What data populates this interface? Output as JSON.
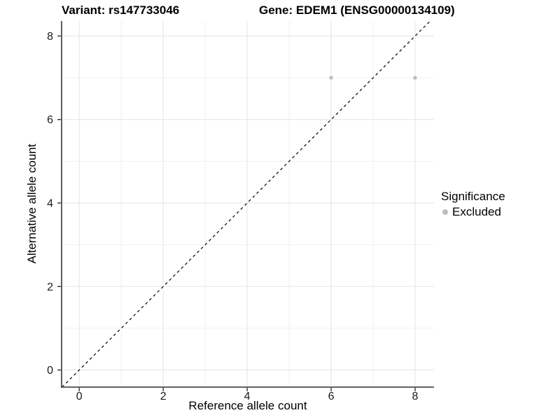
{
  "header": {
    "title_left": "Variant: rs147733046",
    "title_right": "Gene: EDEM1 (ENSG00000134109)"
  },
  "axes": {
    "x_title": "Reference allele count",
    "y_title": "Alternative allele count",
    "x_tick_labels": [
      "0",
      "2",
      "4",
      "6",
      "8"
    ],
    "y_tick_labels": [
      "0",
      "2",
      "4",
      "6",
      "8"
    ]
  },
  "legend": {
    "title": "Significance",
    "items": [
      {
        "label": "Excluded",
        "color": "#bdbdbd"
      }
    ]
  },
  "colors": {
    "point": "#bdbdbd",
    "grid_major": "#e4e4e4",
    "grid_minor": "#f0f0f0",
    "axis_line": "#4d4d4d",
    "tick_mark": "#333333",
    "tick_text": "#1a1a1a",
    "reference_line": "#000000",
    "background": "#ffffff"
  },
  "chart_data": {
    "type": "scatter",
    "title": "Variant: rs147733046 — Gene: EDEM1 (ENSG00000134109)",
    "xlabel": "Reference allele count",
    "ylabel": "Alternative allele count",
    "xlim": [
      -0.42,
      8.45
    ],
    "ylim": [
      -0.41,
      8.36
    ],
    "xticks": [
      0,
      2,
      4,
      6,
      8
    ],
    "yticks": [
      0,
      2,
      4,
      6,
      8
    ],
    "minor_xticks": [
      1,
      3,
      5,
      7
    ],
    "minor_yticks": [
      1,
      3,
      5,
      7
    ],
    "grid": true,
    "series": [
      {
        "name": "Excluded",
        "color": "#bdbdbd",
        "points": [
          [
            6,
            7
          ],
          [
            8,
            7
          ]
        ]
      }
    ],
    "reference_line": {
      "kind": "identity",
      "style": "dashed",
      "color": "#000000"
    },
    "legend_position": "right",
    "legend_title": "Significance"
  }
}
